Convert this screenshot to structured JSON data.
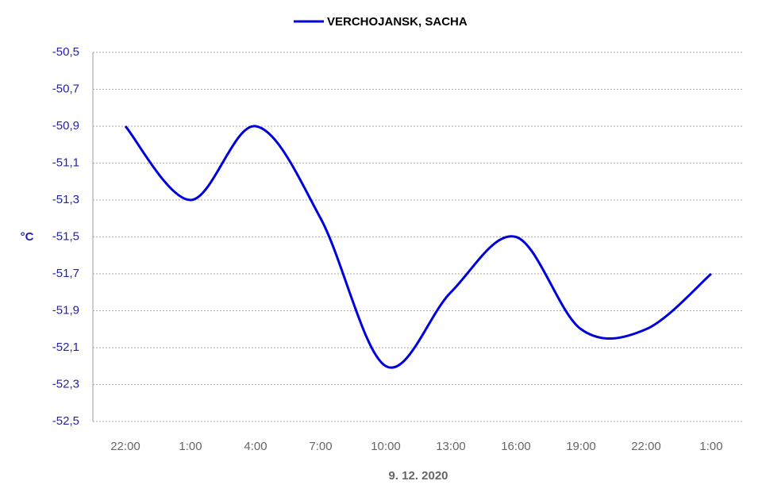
{
  "chart_data": {
    "type": "line",
    "categories": [
      "22:00",
      "1:00",
      "4:00",
      "7:00",
      "10:00",
      "13:00",
      "16:00",
      "19:00",
      "22:00",
      "1:00"
    ],
    "series": [
      {
        "name": "VERCHOJANSK, SACHA",
        "color": "#0000dd",
        "values": [
          -50.9,
          -51.3,
          -50.9,
          -51.4,
          -52.2,
          -51.8,
          -51.5,
          -52.0,
          -52.0,
          -51.7
        ]
      }
    ],
    "x_label": "9. 12. 2020",
    "y_label": "°C",
    "ylim": [
      -52.5,
      -50.5
    ],
    "yticks": [
      {
        "value": -52.5,
        "label": "-52,5"
      },
      {
        "value": -52.3,
        "label": "-52,3"
      },
      {
        "value": -52.1,
        "label": "-52,1"
      },
      {
        "value": -51.9,
        "label": "-51,9"
      },
      {
        "value": -51.7,
        "label": "-51,7"
      },
      {
        "value": -51.5,
        "label": "-51,5"
      },
      {
        "value": -51.3,
        "label": "-51,3"
      },
      {
        "value": -51.1,
        "label": "-51,1"
      },
      {
        "value": -50.9,
        "label": "-50,9"
      },
      {
        "value": -50.7,
        "label": "-50,7"
      },
      {
        "value": -50.5,
        "label": "-50,5"
      }
    ],
    "grid": true,
    "smooth": true
  }
}
